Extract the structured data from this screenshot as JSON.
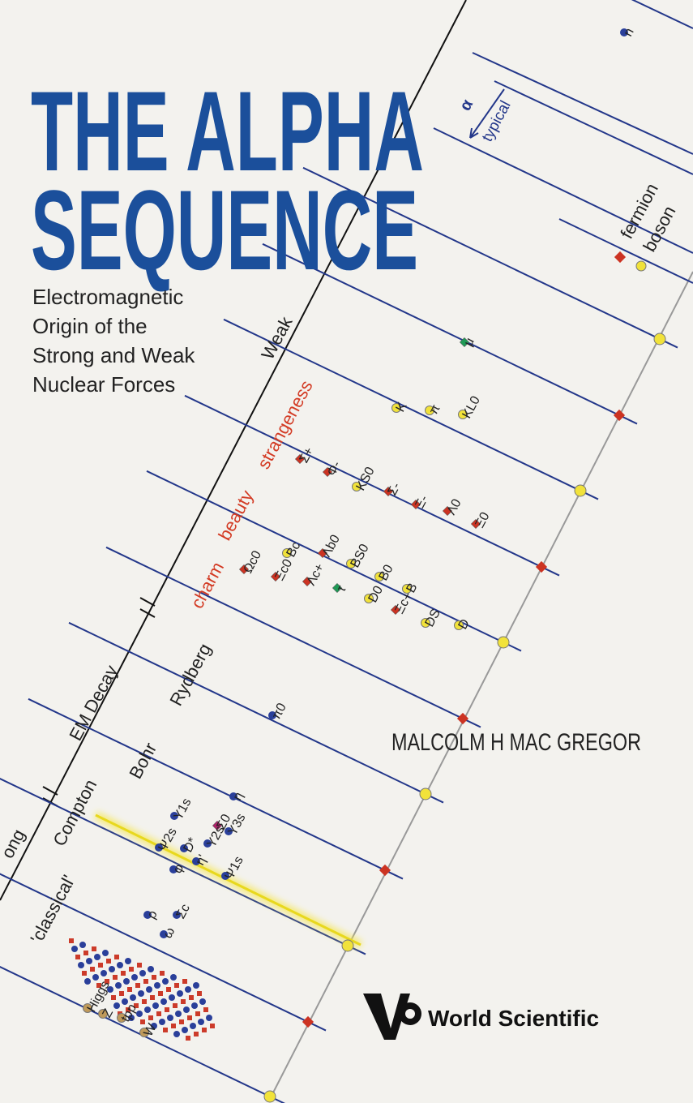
{
  "cover": {
    "title": [
      "THE ALPHA",
      "SEQUENCE"
    ],
    "subtitle": [
      "Electromagnetic",
      "Origin of the",
      "Strong and Weak",
      "Nuclear Forces"
    ],
    "author": "MALCOLM H MAC GREGOR",
    "publisher": "World Scientific",
    "axis_labels": [
      "Weak",
      "EM Decay",
      "Compton",
      "ong"
    ],
    "region_labels": [
      "strangeness",
      "beauty",
      "charm",
      "Rydberg",
      "Bohr",
      "'classical'"
    ],
    "legend": {
      "alpha": "α",
      "typical": "typical",
      "fermion": "fermion",
      "boson": "boson"
    },
    "particles": [
      "n",
      "μ",
      "K",
      "π",
      "KL0",
      "Σ+",
      "Φ-",
      "KS0",
      "Σ-",
      "Ξ-",
      "Λ0",
      "Ξ0",
      "Bc",
      "Λb0",
      "BS0",
      "B0",
      "B",
      "Ωc0",
      "Ξc0",
      "Λc+",
      "τ",
      "D0",
      "Ξc+",
      "DS",
      "D",
      "π0",
      "η",
      "Υ1s",
      "Σ0",
      "Ψ2s",
      "D*",
      "η'",
      "Υ2s",
      "Υ3s",
      "φ",
      "Ψ1s",
      "ρ",
      "Σc",
      "ω",
      "Higgs",
      "Z",
      "tpp",
      "W"
    ]
  }
}
